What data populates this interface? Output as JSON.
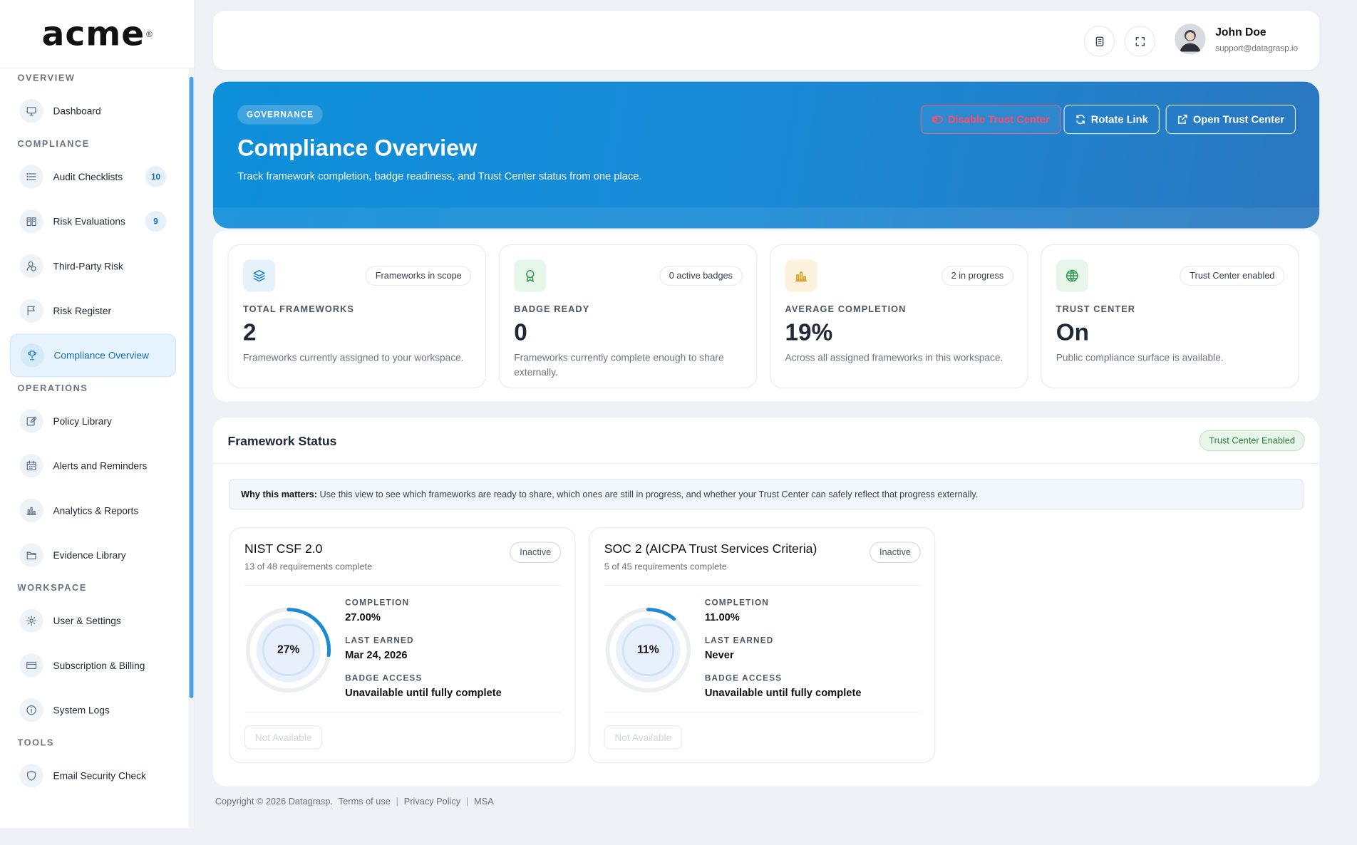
{
  "brand": {
    "logo": "acme"
  },
  "sidebar": {
    "sections": [
      {
        "title": "OVERVIEW",
        "items": [
          {
            "label": "Dashboard",
            "icon": "monitor-icon"
          }
        ]
      },
      {
        "title": "COMPLIANCE",
        "items": [
          {
            "label": "Audit Checklists",
            "icon": "list-icon",
            "count": "10"
          },
          {
            "label": "Risk Evaluations",
            "icon": "book-icon",
            "count": "9"
          },
          {
            "label": "Third-Party Risk",
            "icon": "user-shield-icon"
          },
          {
            "label": "Risk Register",
            "icon": "flag-icon"
          },
          {
            "label": "Compliance Overview",
            "icon": "trophy-icon",
            "active": true
          }
        ]
      },
      {
        "title": "OPERATIONS",
        "items": [
          {
            "label": "Policy Library",
            "icon": "edit-icon"
          },
          {
            "label": "Alerts and Reminders",
            "icon": "calendar-icon"
          },
          {
            "label": "Analytics & Reports",
            "icon": "bar-chart-icon"
          },
          {
            "label": "Evidence Library",
            "icon": "folder-icon"
          }
        ]
      },
      {
        "title": "WORKSPACE",
        "items": [
          {
            "label": "User & Settings",
            "icon": "gear-icon"
          },
          {
            "label": "Subscription & Billing",
            "icon": "credit-card-icon"
          },
          {
            "label": "System Logs",
            "icon": "info-icon"
          }
        ]
      },
      {
        "title": "TOOLS",
        "items": [
          {
            "label": "Email Security Check",
            "icon": "mail-shield-icon"
          }
        ]
      }
    ]
  },
  "header": {
    "user_name": "John Doe",
    "user_email": "support@datagrasp.io"
  },
  "hero": {
    "pill": "GOVERNANCE",
    "title": "Compliance Overview",
    "subtitle": "Track framework completion, badge readiness, and Trust Center status from one place.",
    "buttons": {
      "disable": "Disable Trust Center",
      "rotate": "Rotate Link",
      "open": "Open Trust Center"
    }
  },
  "stats": [
    {
      "tag": "Frameworks in scope",
      "label": "TOTAL FRAMEWORKS",
      "value": "2",
      "desc": "Frameworks currently assigned to your workspace.",
      "icon": "layers-icon",
      "tint": "#e3f2fb",
      "color": "#2a86cf"
    },
    {
      "tag": "0 active badges",
      "label": "BADGE READY",
      "value": "0",
      "desc": "Frameworks currently complete enough to share externally.",
      "icon": "award-icon",
      "tint": "#e6f6ea",
      "color": "#3a9a55"
    },
    {
      "tag": "2 in progress",
      "label": "AVERAGE COMPLETION",
      "value": "19%",
      "desc": "Across all assigned frameworks in this workspace.",
      "icon": "bar-chart-icon",
      "tint": "#fdf3dd",
      "color": "#d99a1d"
    },
    {
      "tag": "Trust Center enabled",
      "label": "TRUST CENTER",
      "value": "On",
      "desc": "Public compliance surface is available.",
      "icon": "globe-icon",
      "tint": "#e6f6ea",
      "color": "#3a9a55"
    }
  ],
  "framework_status": {
    "title": "Framework Status",
    "badge": "Trust Center Enabled",
    "note_bold": "Why this matters:",
    "note_text": " Use this view to see which frameworks are ready to share, which ones are still in progress, and whether your Trust Center can safely reflect that progress externally.",
    "frameworks": [
      {
        "name": "NIST CSF 2.0",
        "progress": "13 of 48 requirements complete",
        "status": "Inactive",
        "percent": 27,
        "percent_label": "27%",
        "completion_label": "COMPLETION",
        "completion": "27.00%",
        "earned_label": "LAST EARNED",
        "earned": "Mar 24, 2026",
        "access_label": "BADGE ACCESS",
        "access": "Unavailable until fully complete",
        "button": "Not Available"
      },
      {
        "name": "SOC 2 (AICPA Trust Services Criteria)",
        "progress": "5 of 45 requirements complete",
        "status": "Inactive",
        "percent": 11,
        "percent_label": "11%",
        "completion_label": "COMPLETION",
        "completion": "11.00%",
        "earned_label": "LAST EARNED",
        "earned": "Never",
        "access_label": "BADGE ACCESS",
        "access": "Unavailable until fully complete",
        "button": "Not Available"
      }
    ]
  },
  "footer": {
    "copyright": "Copyright © 2026 Datagrasp.",
    "links": [
      "Terms of use",
      "Privacy Policy",
      "MSA"
    ]
  }
}
